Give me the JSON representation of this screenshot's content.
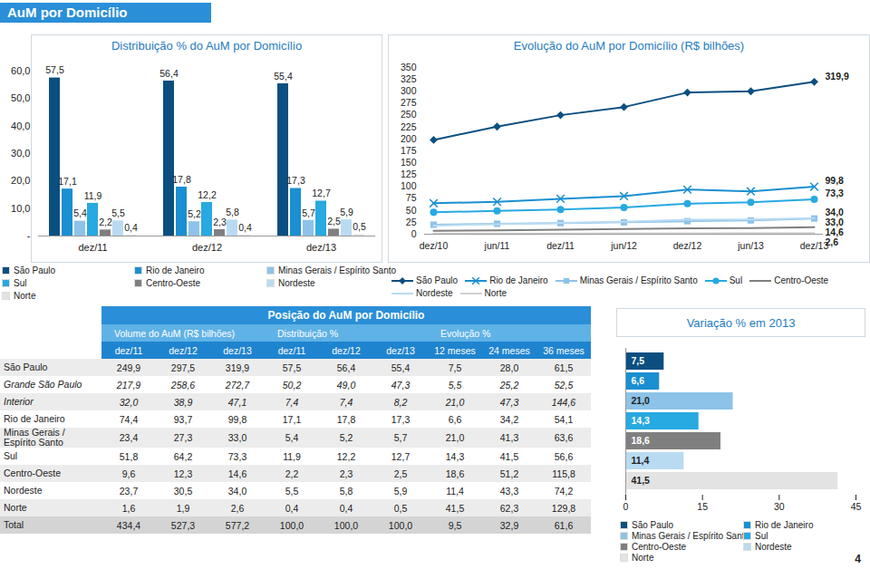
{
  "header": {
    "title": "AuM por Domicílio"
  },
  "page_number": "4",
  "chart_data": [
    {
      "type": "bar",
      "title": "Distribuição % do AuM por Domicílio",
      "categories": [
        "dez/11",
        "dez/12",
        "dez/13"
      ],
      "series": [
        {
          "name": "São Paulo",
          "color": "#0b4f80",
          "values": [
            57.5,
            56.4,
            55.4
          ],
          "value_labels": [
            "57,5",
            "56,4",
            "55,4"
          ]
        },
        {
          "name": "Rio de Janeiro",
          "color": "#1a8fd1",
          "values": [
            17.1,
            17.8,
            17.3
          ],
          "value_labels": [
            "17,1",
            "17,8",
            "17,3"
          ]
        },
        {
          "name": "Minas Gerais / Espírito Santo",
          "color": "#8dc3e8",
          "values": [
            5.4,
            5.2,
            5.7
          ],
          "value_labels": [
            "5,4",
            "5,2",
            "5,7"
          ]
        },
        {
          "name": "Sul",
          "color": "#27a9e1",
          "values": [
            11.9,
            12.2,
            12.7
          ],
          "value_labels": [
            "11,9",
            "12,2",
            "12,7"
          ]
        },
        {
          "name": "Centro-Oeste",
          "color": "#7f7f7f",
          "values": [
            2.2,
            2.3,
            2.5
          ],
          "value_labels": [
            "2,2",
            "2,3",
            "2,5"
          ]
        },
        {
          "name": "Nordeste",
          "color": "#b9dbf1",
          "values": [
            5.5,
            5.8,
            5.9
          ],
          "value_labels": [
            "5,5",
            "5,8",
            "5,9"
          ]
        },
        {
          "name": "Norte",
          "color": "#e3e3e3",
          "values": [
            0.4,
            0.4,
            0.5
          ],
          "value_labels": [
            "0,4",
            "0,4",
            "0,5"
          ]
        }
      ],
      "ylim": [
        0,
        60
      ],
      "yticks": [
        {
          "value": 0,
          "label": "-"
        },
        {
          "value": 10,
          "label": "10,0"
        },
        {
          "value": 20,
          "label": "20,0"
        },
        {
          "value": 30,
          "label": "30,0"
        },
        {
          "value": 40,
          "label": "40,0"
        },
        {
          "value": 50,
          "label": "50,0"
        },
        {
          "value": 60,
          "label": "60,0"
        }
      ],
      "grid": false,
      "data_labels": true,
      "legend": "bottom"
    },
    {
      "type": "line",
      "title": "Evolução do AuM por Domicílio (R$ bilhões)",
      "categories": [
        "dez/10",
        "jun/11",
        "dez/11",
        "jun/12",
        "dez/12",
        "jun/13",
        "dez/13"
      ],
      "series": [
        {
          "name": "São Paulo",
          "color": "#0b4f80",
          "marker": "diamond",
          "values": [
            198,
            226,
            249.9,
            267,
            297.5,
            300,
            319.9
          ],
          "value_labels": [
            null,
            null,
            null,
            null,
            null,
            null,
            "319,9"
          ]
        },
        {
          "name": "Rio de Janeiro",
          "color": "#1a8fd1",
          "marker": "x",
          "values": [
            65,
            68,
            74.4,
            80,
            93.7,
            90,
            99.8
          ],
          "value_labels": [
            null,
            null,
            null,
            null,
            null,
            null,
            "99,8"
          ]
        },
        {
          "name": "Minas Gerais / Espírito Santo",
          "color": "#8dc3e8",
          "marker": "square",
          "values": [
            20,
            22,
            23.4,
            25,
            27.3,
            29,
            33.0
          ],
          "value_labels": [
            null,
            null,
            null,
            null,
            null,
            null,
            "33,0"
          ]
        },
        {
          "name": "Sul",
          "color": "#27a9e1",
          "marker": "circle",
          "values": [
            46,
            49,
            51.8,
            56,
            64.2,
            67,
            73.3
          ],
          "value_labels": [
            null,
            null,
            null,
            null,
            null,
            null,
            "73,3"
          ]
        },
        {
          "name": "Centro-Oeste",
          "color": "#7f7f7f",
          "marker": "none",
          "values": [
            7,
            8,
            9.6,
            11,
            12.3,
            13,
            14.6
          ],
          "value_labels": [
            null,
            null,
            null,
            null,
            null,
            null,
            "14,6"
          ]
        },
        {
          "name": "Nordeste",
          "color": "#b9dbf1",
          "marker": "none",
          "values": [
            18,
            21,
            23.7,
            26,
            30.5,
            31,
            34.0
          ],
          "value_labels": [
            null,
            null,
            null,
            null,
            null,
            null,
            "34,0"
          ]
        },
        {
          "name": "Norte",
          "color": "#d0d0d0",
          "marker": "none",
          "values": [
            1.2,
            1.4,
            1.6,
            1.8,
            1.9,
            2.2,
            2.6
          ],
          "value_labels": [
            null,
            null,
            null,
            null,
            null,
            null,
            "2,6"
          ]
        }
      ],
      "ylim": [
        0,
        350
      ],
      "yticks": [
        0,
        25,
        50,
        75,
        100,
        125,
        150,
        175,
        200,
        225,
        250,
        275,
        300,
        325,
        350
      ],
      "grid": false,
      "legend": "bottom"
    },
    {
      "type": "bar",
      "orientation": "horizontal",
      "title": "Variação % em 2013",
      "categories": [
        "São Paulo",
        "Rio de Janeiro",
        "Minas Gerais / Espírito Santo",
        "Sul",
        "Centro-Oeste",
        "Nordeste",
        "Norte"
      ],
      "values": [
        7.5,
        6.6,
        21.0,
        14.3,
        18.6,
        11.4,
        41.5
      ],
      "value_labels": [
        "7,5",
        "6,6",
        "21,0",
        "14,3",
        "18,6",
        "11,4",
        "41,5"
      ],
      "colors": [
        "#0b4f80",
        "#1a8fd1",
        "#8dc3e8",
        "#27a9e1",
        "#7f7f7f",
        "#b9dbf1",
        "#e3e3e3"
      ],
      "xlim": [
        0,
        45
      ],
      "xticks": [
        0,
        15,
        30,
        45
      ],
      "grid": false,
      "data_labels": true,
      "legend": "bottom"
    }
  ],
  "table": {
    "title": "Posição do AuM por Domicílio",
    "groups": [
      {
        "label": "Volume do AuM (R$ bilhões)",
        "span": 3
      },
      {
        "label": "Distribuição %",
        "span": 3
      },
      {
        "label": "Evolução %",
        "span": 3
      }
    ],
    "columns": [
      "dez/11",
      "dez/12",
      "dez/13",
      "dez/11",
      "dez/12",
      "dez/13",
      "12 meses",
      "24 meses",
      "36 meses"
    ],
    "rows": [
      {
        "label": "São Paulo",
        "cells": [
          "249,9",
          "297,5",
          "319,9",
          "57,5",
          "56,4",
          "55,4",
          "7,5",
          "28,0",
          "61,5"
        ]
      },
      {
        "label": "Grande São Paulo",
        "style": "italic",
        "cells": [
          "217,9",
          "258,6",
          "272,7",
          "50,2",
          "49,0",
          "47,3",
          "5,5",
          "25,2",
          "52,5"
        ]
      },
      {
        "label": "Interior",
        "style": "italic",
        "cells": [
          "32,0",
          "38,9",
          "47,1",
          "7,4",
          "7,4",
          "8,2",
          "21,0",
          "47,3",
          "144,6"
        ]
      },
      {
        "label": "Rio de Janeiro",
        "cells": [
          "74,4",
          "93,7",
          "99,8",
          "17,1",
          "17,8",
          "17,3",
          "6,6",
          "34,2",
          "54,1"
        ]
      },
      {
        "label": "Minas Gerais / Espírito Santo",
        "cells": [
          "23,4",
          "27,3",
          "33,0",
          "5,4",
          "5,2",
          "5,7",
          "21,0",
          "41,3",
          "63,6"
        ]
      },
      {
        "label": "Sul",
        "cells": [
          "51,8",
          "64,2",
          "73,3",
          "11,9",
          "12,2",
          "12,7",
          "14,3",
          "41,5",
          "56,6"
        ]
      },
      {
        "label": "Centro-Oeste",
        "cells": [
          "9,6",
          "12,3",
          "14,6",
          "2,2",
          "2,3",
          "2,5",
          "18,6",
          "51,2",
          "115,8"
        ]
      },
      {
        "label": "Nordeste",
        "cells": [
          "23,7",
          "30,5",
          "34,0",
          "5,5",
          "5,8",
          "5,9",
          "11,4",
          "43,3",
          "74,2"
        ]
      },
      {
        "label": "Norte",
        "cells": [
          "1,6",
          "1,9",
          "2,6",
          "0,4",
          "0,4",
          "0,5",
          "41,5",
          "62,3",
          "129,8"
        ]
      },
      {
        "label": "Total",
        "cells": [
          "434,4",
          "527,3",
          "577,2",
          "100,0",
          "100,0",
          "100,0",
          "9,5",
          "32,9",
          "61,6"
        ]
      }
    ]
  }
}
